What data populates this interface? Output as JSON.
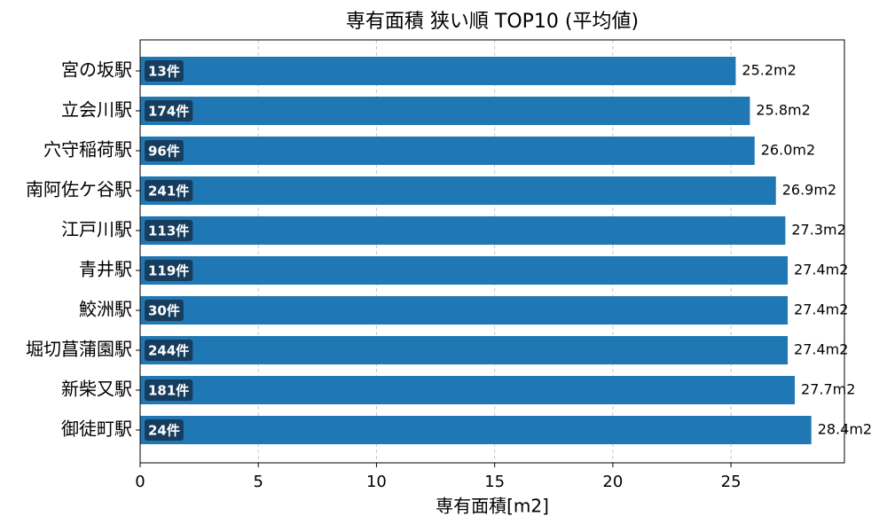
{
  "chart_data": {
    "type": "barh",
    "title": "専有面積 狭い順 TOP10 (平均値)",
    "x_label": "専有面積[m2]",
    "categories": [
      "宮の坂駅",
      "立会川駅",
      "穴守稲荷駅",
      "南阿佐ケ谷駅",
      "江戸川駅",
      "青井駅",
      "鮫洲駅",
      "堀切菖蒲園駅",
      "新柴又駅",
      "御徒町駅"
    ],
    "values": [
      25.2,
      25.8,
      26.0,
      26.9,
      27.3,
      27.4,
      27.4,
      27.4,
      27.7,
      28.4
    ],
    "value_labels": [
      "25.2m2",
      "25.8m2",
      "26.0m2",
      "26.9m2",
      "27.3m2",
      "27.4m2",
      "27.4m2",
      "27.4m2",
      "27.7m2",
      "28.4m2"
    ],
    "count_labels": [
      "13件",
      "174件",
      "96件",
      "241件",
      "113件",
      "119件",
      "30件",
      "244件",
      "181件",
      "24件"
    ],
    "color": "#1f77b4",
    "xlim": [
      0,
      29.8
    ],
    "xticks": [
      0,
      5,
      10,
      15,
      20,
      25
    ],
    "grid": true
  }
}
